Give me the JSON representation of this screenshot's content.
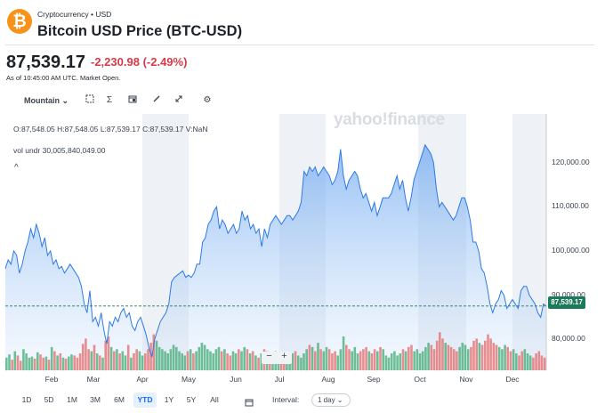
{
  "header": {
    "breadcrumb": "Cryptocurrency • USD",
    "title": "Bitcoin USD Price (BTC-USD)",
    "logo_symbol": "₿",
    "logo_color": "#f7931a"
  },
  "quote": {
    "price": "87,539.17",
    "change": "-2,230.98",
    "change_pct": "(-2.49%)",
    "as_of": "As of 10:45:00 AM UTC. Market Open.",
    "change_color": "#d63a47"
  },
  "toolbar": {
    "chart_type": "Mountain",
    "chart_type_caret": "⌄",
    "icons": [
      "compare-icon",
      "indicators-icon",
      "events-icon",
      "draw-icon",
      "expand-icon",
      "settings-icon"
    ]
  },
  "legend": {
    "ohlc": "O:87,548.05  H:87,548.05  L:87,539.17  C:87,539.17  V:NaN",
    "volume": "vol undr  30,005,840,049.00",
    "collapse": "^"
  },
  "watermark": "yahoo!finance",
  "chart_data": {
    "type": "area",
    "title": "",
    "xlabel": "",
    "ylabel": "",
    "ylim": [
      73000,
      131000
    ],
    "y_ticks": [
      "120,000.00",
      "110,000.00",
      "100,000.00",
      "90,000.00",
      "80,000.00"
    ],
    "x_ticks": [
      "Feb",
      "Mar",
      "Apr",
      "May",
      "Jun",
      "Jul",
      "Aug",
      "Sep",
      "Oct",
      "Nov",
      "Dec"
    ],
    "current_price_label": "87,539.17",
    "current_price": 87539.17,
    "line_color": "#2f7ae5",
    "up_color": "#4caf7d",
    "down_color": "#e57373",
    "series": [
      {
        "values": [
          96000,
          98000,
          97000,
          100000,
          99000,
          95000,
          97000,
          100000,
          102000,
          105000,
          103000,
          106000,
          104000,
          101000,
          103000,
          99000,
          100000,
          97000,
          98000,
          96000,
          96500,
          95000,
          96000,
          97000,
          96000,
          95000,
          94000,
          92000,
          88000,
          86000,
          91000,
          84000,
          85000,
          83000,
          86000,
          82000,
          79000,
          84000,
          83000,
          85000,
          84000,
          86000,
          87000,
          85000,
          86000,
          83000,
          82000,
          84000,
          85000,
          83000,
          81000,
          78000,
          76000,
          80000,
          82000,
          84000,
          85000,
          86000,
          88000,
          93000,
          94000,
          94500,
          95000,
          95500,
          94000,
          94500,
          94000,
          95000,
          97000,
          97000,
          102000,
          103000,
          106000,
          107000,
          109000,
          110000,
          105000,
          107000,
          106000,
          104000,
          105000,
          106000,
          104000,
          105000,
          109000,
          107000,
          108000,
          105000,
          106000,
          104000,
          105000,
          101000,
          105000,
          103000,
          106000,
          107000,
          108000,
          107000,
          106000,
          107000,
          108000,
          108000,
          107000,
          108000,
          109000,
          111000,
          118000,
          117000,
          119000,
          118000,
          119000,
          117000,
          118000,
          119000,
          118000,
          117000,
          115000,
          116000,
          118000,
          123000,
          117000,
          114000,
          116000,
          117000,
          118000,
          117000,
          114000,
          112000,
          113000,
          111000,
          109000,
          111000,
          108000,
          110000,
          112000,
          112000,
          112000,
          113000,
          115000,
          117000,
          114000,
          116000,
          112000,
          109000,
          112000,
          116000,
          118000,
          120000,
          122000,
          124000,
          123000,
          122000,
          120000,
          114000,
          110000,
          111000,
          110000,
          109000,
          108000,
          107000,
          108000,
          110000,
          112000,
          112000,
          110000,
          107000,
          102000,
          102000,
          100000,
          96000,
          95000,
          92000,
          88000,
          86000,
          88000,
          89000,
          91000,
          90000,
          87000,
          88000,
          89000,
          88000,
          87000,
          91000,
          92000,
          92000,
          90000,
          89000,
          88000,
          86000,
          85000,
          88000,
          87539.17
        ]
      }
    ],
    "volume": {
      "label": "vol undr",
      "ylim": [
        0,
        80000000000
      ],
      "values": [
        12000000000,
        15000000000,
        10000000000,
        18000000000,
        14000000000,
        9000000000,
        20000000000,
        16000000000,
        12000000000,
        13000000000,
        11000000000,
        17000000000,
        15000000000,
        12000000000,
        13000000000,
        10000000000,
        22000000000,
        18000000000,
        14000000000,
        16000000000,
        12000000000,
        11000000000,
        13000000000,
        15000000000,
        14000000000,
        12000000000,
        16000000000,
        25000000000,
        30000000000,
        20000000000,
        18000000000,
        24000000000,
        16000000000,
        14000000000,
        12000000000,
        28000000000,
        32000000000,
        22000000000,
        18000000000,
        20000000000,
        16000000000,
        18000000000,
        14000000000,
        24000000000,
        12000000000,
        16000000000,
        20000000000,
        18000000000,
        14000000000,
        16000000000,
        20000000000,
        26000000000,
        34000000000,
        28000000000,
        22000000000,
        20000000000,
        18000000000,
        16000000000,
        20000000000,
        24000000000,
        22000000000,
        18000000000,
        16000000000,
        14000000000,
        18000000000,
        20000000000,
        16000000000,
        18000000000,
        22000000000,
        26000000000,
        24000000000,
        20000000000,
        18000000000,
        16000000000,
        20000000000,
        22000000000,
        18000000000,
        20000000000,
        16000000000,
        14000000000,
        18000000000,
        16000000000,
        20000000000,
        18000000000,
        22000000000,
        20000000000,
        16000000000,
        18000000000,
        14000000000,
        12000000000,
        16000000000,
        20000000000,
        18000000000,
        14000000000,
        16000000000,
        18000000000,
        14000000000,
        12000000000,
        10000000000,
        14000000000,
        12000000000,
        16000000000,
        18000000000,
        14000000000,
        12000000000,
        16000000000,
        20000000000,
        24000000000,
        22000000000,
        18000000000,
        26000000000,
        20000000000,
        18000000000,
        22000000000,
        20000000000,
        16000000000,
        18000000000,
        14000000000,
        20000000000,
        32000000000,
        24000000000,
        20000000000,
        18000000000,
        22000000000,
        16000000000,
        18000000000,
        20000000000,
        22000000000,
        18000000000,
        16000000000,
        20000000000,
        18000000000,
        22000000000,
        20000000000,
        14000000000,
        12000000000,
        16000000000,
        18000000000,
        14000000000,
        16000000000,
        20000000000,
        18000000000,
        22000000000,
        24000000000,
        18000000000,
        20000000000,
        16000000000,
        18000000000,
        22000000000,
        26000000000,
        24000000000,
        20000000000,
        28000000000,
        36000000000,
        30000000000,
        26000000000,
        24000000000,
        22000000000,
        20000000000,
        18000000000,
        22000000000,
        26000000000,
        24000000000,
        20000000000,
        22000000000,
        28000000000,
        30000000000,
        26000000000,
        24000000000,
        28000000000,
        34000000000,
        30000000000,
        26000000000,
        24000000000,
        22000000000,
        20000000000,
        24000000000,
        22000000000,
        18000000000,
        20000000000,
        16000000000,
        14000000000,
        18000000000,
        20000000000,
        16000000000,
        14000000000,
        12000000000,
        16000000000,
        18000000000,
        14000000000,
        12000000000
      ]
    }
  },
  "zoom": {
    "minus": "−",
    "plus": "+"
  },
  "ranges": {
    "items": [
      "1D",
      "5D",
      "1M",
      "3M",
      "6M",
      "YTD",
      "1Y",
      "5Y",
      "All"
    ],
    "active": "YTD",
    "interval_label": "Interval:",
    "interval_value": "1 day ⌄"
  }
}
